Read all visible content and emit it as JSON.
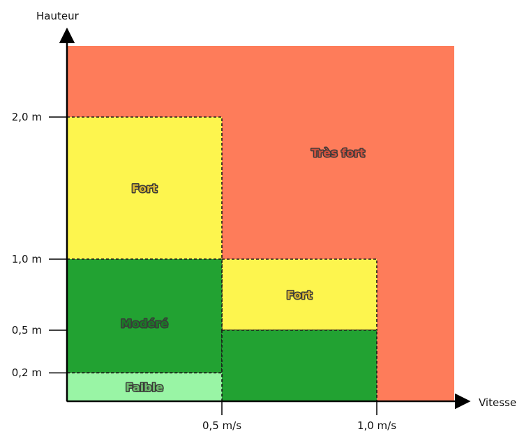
{
  "chart_data": {
    "type": "heatmap",
    "title": "",
    "xlabel": "Vitesse",
    "ylabel": "Hauteur",
    "x_ticks": [
      {
        "value": 0.5,
        "label": "0,5 m/s"
      },
      {
        "value": 1.0,
        "label": "1,0 m/s"
      }
    ],
    "y_ticks": [
      {
        "value": 0.2,
        "label": "0,2 m"
      },
      {
        "value": 0.5,
        "label": "0,5 m"
      },
      {
        "value": 1.0,
        "label": "1,0 m"
      },
      {
        "value": 2.0,
        "label": "2,0 m"
      }
    ],
    "xlim": [
      0,
      1.25
    ],
    "ylim": [
      0,
      2.5
    ],
    "levels": {
      "faible": {
        "label": "Faible",
        "color": "#99f5a5",
        "text_color": "#6fbf6f"
      },
      "modere": {
        "label": "Modéré",
        "color": "#22a232",
        "text_color": "#1a7a26"
      },
      "fort": {
        "label": "Fort",
        "color": "#fdf54e",
        "text_color": "#d9b930"
      },
      "tres_fort": {
        "label": "Très fort",
        "color": "#fe7c5a",
        "text_color": "#d0523e"
      }
    },
    "regions": [
      {
        "level": "tres_fort",
        "x": [
          0,
          1.25
        ],
        "y": [
          0,
          2.5
        ],
        "dashed": false,
        "label_pos": [
          0.875,
          1.75
        ]
      },
      {
        "level": "fort",
        "x": [
          0,
          0.5
        ],
        "y": [
          1.0,
          2.0
        ],
        "dashed": true,
        "label_pos": [
          0.25,
          1.5
        ]
      },
      {
        "level": "fort",
        "x": [
          0.5,
          1.0
        ],
        "y": [
          0.5,
          1.0
        ],
        "dashed": true,
        "label_pos": [
          0.75,
          0.75
        ]
      },
      {
        "level": "modere",
        "x": [
          0,
          0.5
        ],
        "y": [
          0.2,
          1.0
        ],
        "dashed": true,
        "label_pos": [
          0.25,
          0.55
        ]
      },
      {
        "level": "modere",
        "x": [
          0.5,
          1.0
        ],
        "y": [
          0,
          0.5
        ],
        "dashed": true,
        "label_pos": null
      },
      {
        "level": "faible",
        "x": [
          0,
          0.5
        ],
        "y": [
          0,
          0.2
        ],
        "dashed": true,
        "label_pos": [
          0.25,
          0.1
        ]
      }
    ]
  }
}
